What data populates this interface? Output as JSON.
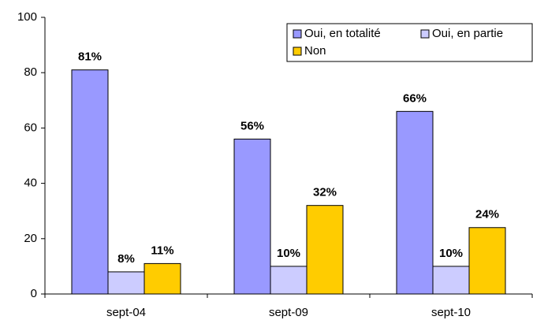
{
  "chart_data": {
    "type": "bar",
    "categories": [
      "sept-04",
      "sept-09",
      "sept-10"
    ],
    "series": [
      {
        "name": "Oui, en totalité",
        "color": "#9999ff",
        "values": [
          81,
          56,
          66
        ],
        "value_labels": [
          "81%",
          "56%",
          "66%"
        ]
      },
      {
        "name": "Oui, en partie",
        "color": "#ccccff",
        "values": [
          8,
          10,
          10
        ],
        "value_labels": [
          "8%",
          "10%",
          "10%"
        ]
      },
      {
        "name": "Non",
        "color": "#ffcc00",
        "values": [
          11,
          32,
          24
        ],
        "value_labels": [
          "11%",
          "32%",
          "24%"
        ]
      }
    ],
    "ylim": [
      0,
      100
    ],
    "yticks": [
      0,
      20,
      40,
      60,
      80,
      100
    ],
    "grid": false,
    "legend": "upper right"
  }
}
